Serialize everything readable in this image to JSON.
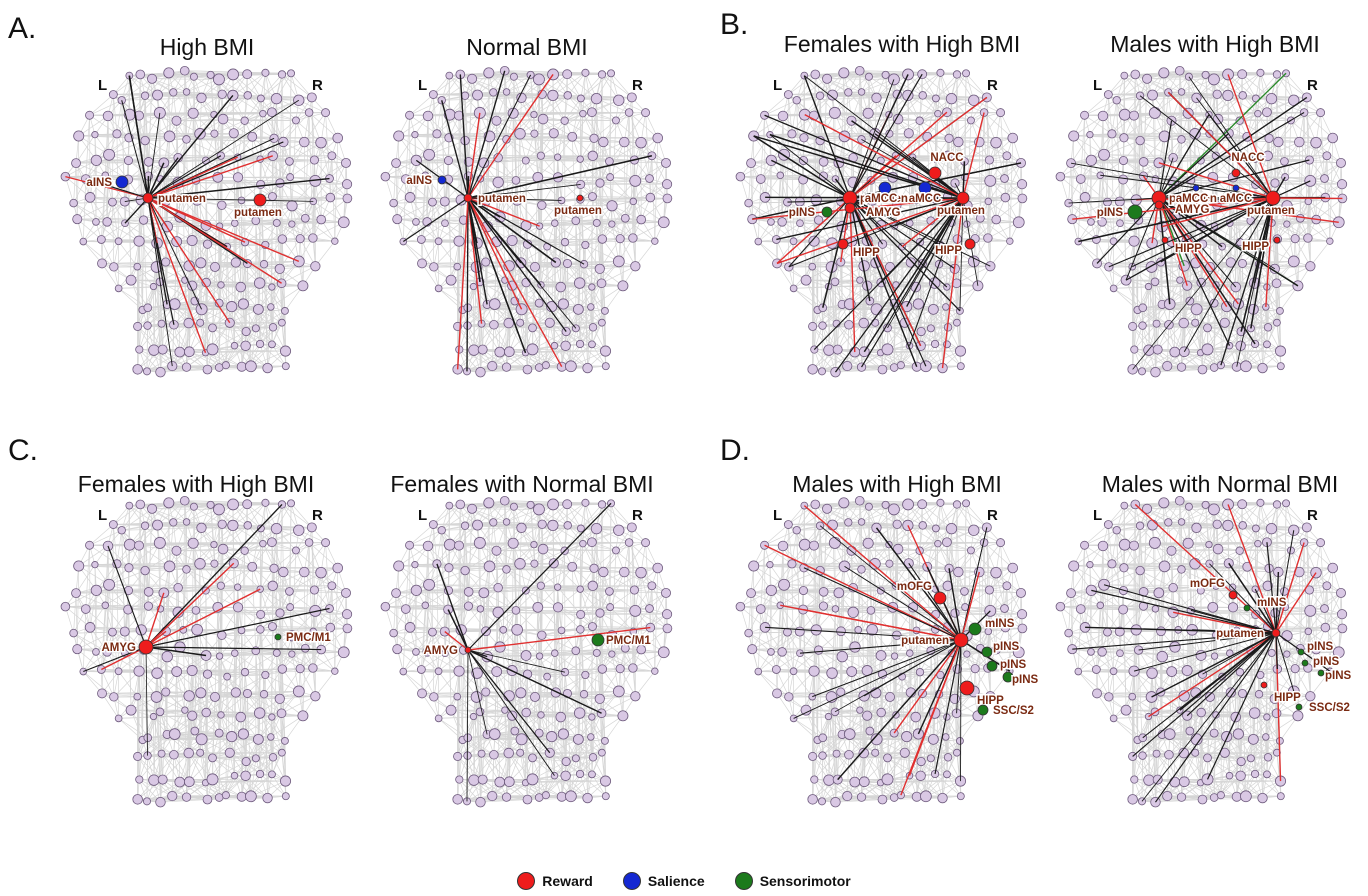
{
  "sections": [
    {
      "label": "A.",
      "panels": [
        {
          "title": "High BMI",
          "hemispheres": {
            "left": "L",
            "right": "R"
          },
          "nodes": [
            {
              "name": "aINS",
              "network": "salience",
              "label": "aINS"
            },
            {
              "name": "putamen-left",
              "network": "reward",
              "label": "putamen",
              "hub": true
            },
            {
              "name": "putamen-right",
              "network": "reward",
              "label": "putamen"
            }
          ]
        },
        {
          "title": "Normal BMI",
          "hemispheres": {
            "left": "L",
            "right": "R"
          },
          "nodes": [
            {
              "name": "aINS",
              "network": "salience",
              "label": "aINS"
            },
            {
              "name": "putamen-left",
              "network": "reward",
              "label": "putamen",
              "hub": true
            },
            {
              "name": "putamen-right",
              "network": "reward",
              "label": "putamen"
            }
          ]
        }
      ]
    },
    {
      "label": "B.",
      "panels": [
        {
          "title": "Females with High BMI",
          "hemispheres": {
            "left": "L",
            "right": "R"
          },
          "nodes": [
            {
              "name": "NACC",
              "network": "reward",
              "label": "NACC"
            },
            {
              "name": "putamen-left",
              "network": "reward",
              "label": "putamen",
              "hub": true
            },
            {
              "name": "putamen-right",
              "network": "reward",
              "label": "putamen",
              "hub": true
            },
            {
              "name": "aMCC-left",
              "network": "salience",
              "label": "aMCC"
            },
            {
              "name": "aMCC-right",
              "network": "salience",
              "label": "aMCC"
            },
            {
              "name": "pINS",
              "network": "sensorimotor",
              "label": "pINS"
            },
            {
              "name": "AMYG",
              "network": "reward",
              "label": "AMYG"
            },
            {
              "name": "HIPP-left",
              "network": "reward",
              "label": "HIPP"
            },
            {
              "name": "HIPP-right",
              "network": "reward",
              "label": "HIPP"
            }
          ]
        },
        {
          "title": "Males with High BMI",
          "hemispheres": {
            "left": "L",
            "right": "R"
          },
          "nodes": [
            {
              "name": "NACC",
              "network": "reward",
              "label": "NACC"
            },
            {
              "name": "putamen-left",
              "network": "reward",
              "label": "putamen",
              "hub": true
            },
            {
              "name": "putamen-right",
              "network": "reward",
              "label": "putamen",
              "hub": true
            },
            {
              "name": "aMCC-left",
              "network": "salience",
              "label": "aMCC"
            },
            {
              "name": "aMCC-right",
              "network": "salience",
              "label": "aMCC"
            },
            {
              "name": "pINS",
              "network": "sensorimotor",
              "label": "pINS"
            },
            {
              "name": "AMYG",
              "network": "reward",
              "label": "AMYG"
            },
            {
              "name": "HIPP-left",
              "network": "reward",
              "label": "HIPP"
            },
            {
              "name": "HIPP-right",
              "network": "reward",
              "label": "HIPP"
            }
          ]
        }
      ]
    },
    {
      "label": "C.",
      "panels": [
        {
          "title": "Females with High BMI",
          "hemispheres": {
            "left": "L",
            "right": "R"
          },
          "nodes": [
            {
              "name": "AMYG",
              "network": "reward",
              "label": "AMYG",
              "hub": true
            },
            {
              "name": "PMC-M1",
              "network": "sensorimotor",
              "label": "PMC/M1"
            }
          ]
        },
        {
          "title": "Females with Normal BMI",
          "hemispheres": {
            "left": "L",
            "right": "R"
          },
          "nodes": [
            {
              "name": "AMYG",
              "network": "reward",
              "label": "AMYG",
              "hub": true
            },
            {
              "name": "PMC-M1",
              "network": "sensorimotor",
              "label": "PMC/M1"
            }
          ]
        }
      ]
    },
    {
      "label": "D.",
      "panels": [
        {
          "title": "Males with High BMI",
          "hemispheres": {
            "left": "L",
            "right": "R"
          },
          "nodes": [
            {
              "name": "mOFG",
              "network": "reward",
              "label": "mOFG"
            },
            {
              "name": "putamen",
              "network": "reward",
              "label": "putamen",
              "hub": true
            },
            {
              "name": "mINS",
              "network": "sensorimotor",
              "label": "mINS"
            },
            {
              "name": "pINS-1",
              "network": "sensorimotor",
              "label": "pINS"
            },
            {
              "name": "pINS-2",
              "network": "sensorimotor",
              "label": "pINS"
            },
            {
              "name": "pINS-3",
              "network": "sensorimotor",
              "label": "pINS"
            },
            {
              "name": "HIPP",
              "network": "reward",
              "label": "HIPP"
            },
            {
              "name": "SSC-S2",
              "network": "sensorimotor",
              "label": "SSC/S2"
            }
          ]
        },
        {
          "title": "Males with Normal BMI",
          "hemispheres": {
            "left": "L",
            "right": "R"
          },
          "nodes": [
            {
              "name": "mOFG",
              "network": "reward",
              "label": "mOFG"
            },
            {
              "name": "mINS",
              "network": "sensorimotor",
              "label": "mINS"
            },
            {
              "name": "putamen",
              "network": "reward",
              "label": "putamen",
              "hub": true
            },
            {
              "name": "pINS-1",
              "network": "sensorimotor",
              "label": "pINS"
            },
            {
              "name": "pINS-2",
              "network": "sensorimotor",
              "label": "pINS"
            },
            {
              "name": "pINS-3",
              "network": "sensorimotor",
              "label": "pINS"
            },
            {
              "name": "HIPP",
              "network": "reward",
              "label": "HIPP"
            },
            {
              "name": "SSC-S2",
              "network": "sensorimotor",
              "label": "SSC/S2"
            }
          ]
        }
      ]
    }
  ],
  "legend": [
    {
      "network": "reward",
      "label": "Reward",
      "color": "#ee1c1c"
    },
    {
      "network": "salience",
      "label": "Salience",
      "color": "#1428d2"
    },
    {
      "network": "sensorimotor",
      "label": "Sensorimotor",
      "color": "#1c7a1c"
    }
  ],
  "colors": {
    "background_node": "#d9c8e4",
    "background_node_stroke": "#6d5a7c",
    "background_edge": "#d6d6d6",
    "black_edge": "#1a1a1a",
    "reward_edge": "#e03030",
    "sensorimotor_edge": "#2a8a2a",
    "region_label": "#7a2a12"
  }
}
